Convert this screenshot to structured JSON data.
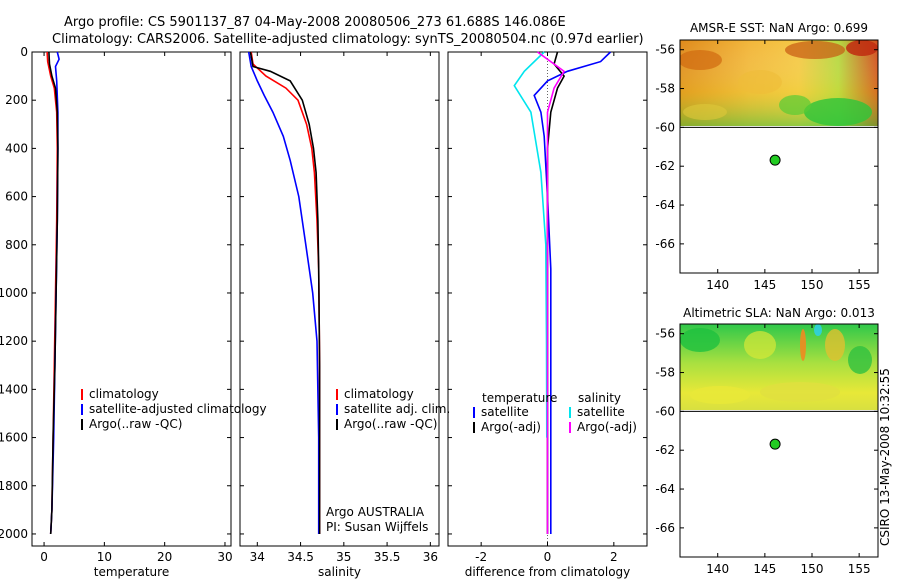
{
  "header": {
    "title_line1": "Argo profile: CS 5901137_87 04-May-2008 20080506_273 61.688S 146.086E",
    "title_line2": "Climatology: CARS2006. Satellite-adjusted climatology: synTS_20080504.nc (0.97d earlier)"
  },
  "credit": "CSIRO 13-May-2008 10:32:55",
  "chart_data": [
    {
      "type": "line",
      "panel": "temperature",
      "xlabel": "temperature",
      "ylabel": "",
      "xlim": [
        -2,
        31
      ],
      "ylim": [
        2050,
        0
      ],
      "y_reversed": true,
      "xticks": [
        0,
        10,
        20,
        30
      ],
      "yticks": [
        0,
        200,
        400,
        600,
        800,
        1000,
        1200,
        1400,
        1600,
        1800,
        2000
      ],
      "legend": {
        "placement": "lower-right",
        "entries": [
          "climatology",
          "satellite-adjusted climatology",
          "Argo(..raw -QC)"
        ]
      },
      "series": [
        {
          "name": "climatology",
          "color": "#ff0000",
          "x": [
            0.5,
            0.6,
            1.1,
            1.7,
            2.1,
            2.2,
            2.1,
            1.9,
            1.7,
            1.5,
            1.3,
            1.1
          ],
          "y": [
            0,
            40,
            100,
            150,
            250,
            400,
            700,
            1000,
            1300,
            1600,
            1900,
            2000
          ]
        },
        {
          "name": "satellite-adjusted climatology",
          "color": "#0000ff",
          "x": [
            2.2,
            2.5,
            1.9,
            2.1,
            2.3,
            2.3,
            2.2,
            2.0,
            1.8,
            1.6,
            1.3,
            1.1
          ],
          "y": [
            0,
            30,
            60,
            120,
            250,
            400,
            700,
            1000,
            1300,
            1600,
            1900,
            2000
          ]
        },
        {
          "name": "Argo(..raw -QC)",
          "color": "#000000",
          "x": [
            0.8,
            0.9,
            1.3,
            1.9,
            2.2,
            2.3,
            2.2,
            2.0,
            1.8,
            1.5,
            1.3,
            1.1
          ],
          "y": [
            0,
            50,
            100,
            150,
            250,
            400,
            700,
            1000,
            1300,
            1600,
            1900,
            2000
          ]
        }
      ]
    },
    {
      "type": "line",
      "panel": "salinity",
      "xlabel": "salinity",
      "xlim": [
        33.8,
        36.1
      ],
      "ylim": [
        2050,
        0
      ],
      "xticks": [
        34,
        34.5,
        35,
        35.5,
        36
      ],
      "xticklabels": [
        "34",
        "34.5",
        "35",
        "35.5",
        "36"
      ],
      "legend": {
        "placement": "lower-right",
        "entries": [
          "climatology",
          "satellite adj. clim.",
          "Argo(..raw -QC)"
        ]
      },
      "annotations": [
        "Argo AUSTRALIA",
        "PI: Susan Wijffels"
      ],
      "series": [
        {
          "name": "climatology",
          "color": "#ff0000",
          "x": [
            33.93,
            33.95,
            34.1,
            34.33,
            34.47,
            34.57,
            34.63,
            34.66,
            34.69,
            34.71,
            34.72,
            34.72,
            34.72
          ],
          "y": [
            0,
            50,
            100,
            150,
            200,
            300,
            400,
            500,
            700,
            900,
            1300,
            1700,
            2000
          ]
        },
        {
          "name": "satellite adj. clim.",
          "color": "#0000ff",
          "x": [
            33.9,
            33.93,
            34.0,
            34.08,
            34.18,
            34.3,
            34.38,
            34.48,
            34.56,
            34.64,
            34.69,
            34.71,
            34.71
          ],
          "y": [
            0,
            60,
            120,
            180,
            250,
            350,
            450,
            600,
            800,
            1000,
            1200,
            1600,
            2000
          ]
        },
        {
          "name": "Argo(..raw -QC)",
          "color": "#000000",
          "x": [
            33.92,
            33.95,
            34.15,
            34.38,
            34.52,
            34.6,
            34.65,
            34.68,
            34.7,
            34.71,
            34.72,
            34.72,
            34.72
          ],
          "y": [
            0,
            60,
            80,
            120,
            200,
            300,
            400,
            500,
            700,
            900,
            1300,
            1700,
            2000
          ]
        }
      ]
    },
    {
      "type": "line",
      "panel": "difference",
      "xlabel": "difference from climatology",
      "xlim": [
        -3,
        3
      ],
      "ylim": [
        2050,
        0
      ],
      "xticks": [
        -2,
        0,
        2
      ],
      "legend": {
        "placement": "lower-center",
        "columns": [
          {
            "header": "temperature",
            "entries": [
              "satellite",
              "Argo(-adj)"
            ]
          },
          {
            "header": "salinity",
            "entries": [
              "satellite",
              "Argo(-adj)"
            ]
          }
        ]
      },
      "series": [
        {
          "name": "temperature satellite",
          "color": "#0000ff",
          "x": [
            1.9,
            1.6,
            0.6,
            0.0,
            -0.4,
            -0.2,
            -0.1,
            0.0,
            0.1,
            0.1,
            0.1,
            0.1
          ],
          "y": [
            0,
            40,
            80,
            120,
            180,
            250,
            350,
            600,
            900,
            1300,
            1700,
            2000
          ]
        },
        {
          "name": "temperature Argo(-adj)",
          "color": "#000000",
          "x": [
            0.3,
            0.2,
            0.5,
            0.3,
            0.1,
            0.0,
            0.0,
            0.0,
            0.0,
            0.0,
            0.0,
            0.0
          ],
          "y": [
            0,
            50,
            100,
            150,
            250,
            400,
            700,
            1000,
            1300,
            1600,
            1900,
            2000
          ]
        },
        {
          "name": "salinity satellite",
          "color": "#00e5ee",
          "x": [
            -0.1,
            -0.7,
            -1.0,
            -0.5,
            -0.2,
            -0.05,
            -0.03,
            -0.02
          ],
          "y": [
            0,
            80,
            140,
            250,
            500,
            800,
            1200,
            1600
          ]
        },
        {
          "name": "salinity Argo(-adj)",
          "color": "#ff00ff",
          "x": [
            -0.3,
            0.5,
            0.2,
            0.0,
            0.0,
            0.0,
            0.0,
            0.0
          ],
          "y": [
            0,
            80,
            150,
            250,
            500,
            900,
            1400,
            2000
          ]
        }
      ]
    },
    {
      "type": "heatmap",
      "panel": "sst-map",
      "title": "AMSR-E SST: NaN Argo: 0.699",
      "xlim": [
        136,
        157
      ],
      "ylim": [
        -67.5,
        -55.5
      ],
      "xticks": [
        140,
        145,
        150,
        155
      ],
      "yticks": [
        -56,
        -58,
        -60,
        -62,
        -64,
        -66
      ],
      "data_extent_lat": [
        -60,
        -55.5
      ],
      "marker": {
        "lon": 146.086,
        "lat": -61.688,
        "color": "#22cc22"
      }
    },
    {
      "type": "heatmap",
      "panel": "sla-map",
      "title": "Altimetric SLA: NaN Argo: 0.013",
      "xlim": [
        136,
        157
      ],
      "ylim": [
        -67.5,
        -55.5
      ],
      "xticks": [
        140,
        145,
        150,
        155
      ],
      "yticks": [
        -56,
        -58,
        -60,
        -62,
        -64,
        -66
      ],
      "data_extent_lat": [
        -60,
        -55.5
      ],
      "marker": {
        "lon": 146.086,
        "lat": -61.688,
        "color": "#22cc22"
      }
    }
  ]
}
